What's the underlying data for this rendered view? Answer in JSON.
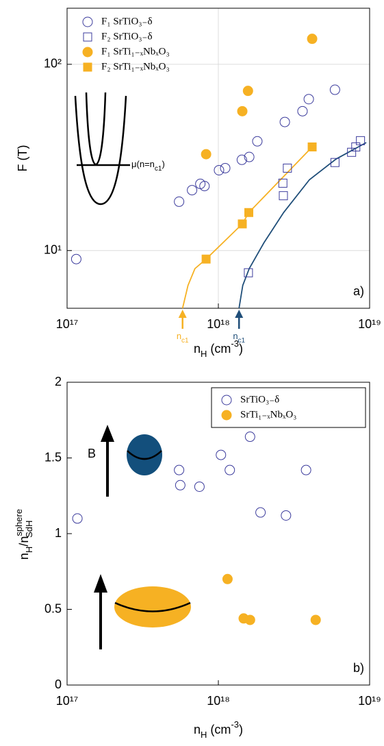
{
  "chart_data": [
    {
      "type": "scatter",
      "xscale": "log",
      "yscale": "log",
      "xlim": [
        1e+17,
        1e+19
      ],
      "ylim": [
        4.9,
        200
      ],
      "xticks": [
        {
          "value": 1e+17,
          "label": "10¹⁷"
        },
        {
          "value": 1e+18,
          "label": "10¹⁸"
        },
        {
          "value": 1e+19,
          "label": "10¹⁹"
        }
      ],
      "yticks": [
        {
          "value": 10,
          "label": "10¹"
        },
        {
          "value": 100,
          "label": "10²"
        }
      ],
      "grid": true,
      "legend": "upper left",
      "xlabel": [
        "n",
        "H",
        " (cm",
        "-3",
        ")"
      ],
      "ylabel": "F (T)",
      "panel_label": "a)",
      "series": [
        {
          "name": "F₁ SrTiO₃₋δ",
          "color": "#3b3b9c",
          "marker": "circle",
          "filled": false,
          "x": [
            1.15e+17,
            5.5e+17,
            6.7e+17,
            7.6e+17,
            8.1e+17,
            1.01e+18,
            1.11e+18,
            1.43e+18,
            1.6e+18,
            1.81e+18,
            2.75e+18,
            3.6e+18,
            3.96e+18,
            5.9e+18
          ],
          "values": [
            9.0,
            18.3,
            21.1,
            22.8,
            22.2,
            27,
            27.7,
            30.7,
            31.8,
            38.6,
            49,
            56,
            65,
            73
          ]
        },
        {
          "name": "F₂ SrTiO₃₋δ",
          "color": "#3b3b9c",
          "marker": "square",
          "filled": false,
          "x": [
            1.58e+18,
            2.69e+18,
            2.67e+18,
            2.86e+18,
            5.9e+18,
            7.6e+18,
            8.1e+18,
            8.7e+18
          ],
          "values": [
            7.6,
            19.7,
            23,
            27.7,
            29.7,
            33.7,
            36,
            38.9
          ]
        },
        {
          "name": "F₁ SrTi₁₋ₓNbₓO₃",
          "color": "#f6b123",
          "marker": "circle",
          "filled": true,
          "x": [
            8.3e+17,
            1.44e+18,
            1.57e+18,
            4.17e+18
          ],
          "values": [
            32.9,
            56,
            72,
            137
          ]
        },
        {
          "name": "F₂ SrTi₁₋ₓNbₓO₃",
          "color": "#f6b123",
          "marker": "square",
          "filled": true,
          "x": [
            8.3e+17,
            1.44e+18,
            1.59e+18,
            4.17e+18
          ],
          "values": [
            9.0,
            13.9,
            16,
            36
          ]
        }
      ],
      "fits": [
        {
          "color": "#f6b123",
          "x": [
            5.8e+17,
            6.3e+17,
            7e+17,
            8.3e+17,
            1.44e+18,
            1.59e+18,
            4.17e+18
          ],
          "values": [
            4.9,
            6.5,
            8,
            9.0,
            13.9,
            16,
            36
          ]
        },
        {
          "color": "#1f4e79",
          "x": [
            1.37e+18,
            1.45e+18,
            1.6e+18,
            2e+18,
            2.7e+18,
            4e+18,
            6e+18,
            9.5e+18
          ],
          "values": [
            4.9,
            6.5,
            8,
            11,
            16,
            24,
            31,
            38
          ]
        }
      ],
      "mu_label": [
        "μ(n=n",
        "c1",
        ")"
      ],
      "nc1": [
        {
          "x": 5.8e+17,
          "color": "#f6b123",
          "label": [
            "n",
            "c1"
          ]
        },
        {
          "x": 1.37e+18,
          "color": "#1f4e79",
          "label": [
            "n",
            "c1"
          ]
        }
      ]
    },
    {
      "type": "scatter",
      "xscale": "log",
      "yscale": "linear",
      "xlim": [
        1e+17,
        1e+19
      ],
      "ylim": [
        0,
        2
      ],
      "xticks": [
        {
          "value": 1e+17,
          "label": "10¹⁷"
        },
        {
          "value": 1e+18,
          "label": "10¹⁸"
        },
        {
          "value": 1e+19,
          "label": "10¹⁹"
        }
      ],
      "yticks": [
        0,
        0.5,
        1,
        1.5,
        2
      ],
      "grid": false,
      "legend": "upper right",
      "xlabel": [
        "n",
        "H",
        " (cm",
        "-3",
        ")"
      ],
      "ylabel": [
        "n",
        "H",
        "/n",
        "sphere",
        "SdH"
      ],
      "panel_label": "b)",
      "field_label": "B",
      "series": [
        {
          "name": "SrTiO₃₋δ",
          "color": "#3b3b9c",
          "marker": "circle",
          "filled": false,
          "x": [
            1.17e+17,
            5.5e+17,
            5.6e+17,
            7.5e+17,
            1.04e+18,
            1.19e+18,
            1.62e+18,
            1.9e+18,
            2.8e+18,
            3.8e+18
          ],
          "values": [
            1.1,
            1.42,
            1.32,
            1.31,
            1.52,
            1.42,
            1.64,
            1.14,
            1.12,
            1.42
          ]
        },
        {
          "name": "SrTi₁₋ₓNbₓO₃",
          "color": "#f6b123",
          "marker": "circle",
          "filled": true,
          "x": [
            1.15e+18,
            1.47e+18,
            1.62e+18,
            4.4e+18
          ],
          "values": [
            0.7,
            0.44,
            0.43,
            0.43
          ]
        }
      ]
    }
  ]
}
